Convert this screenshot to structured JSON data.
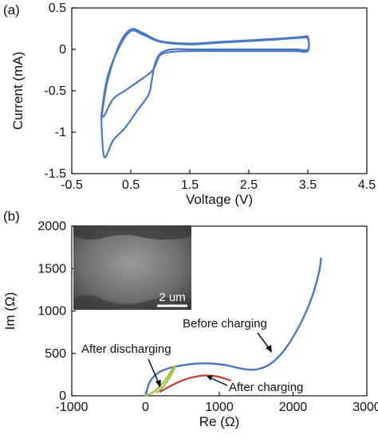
{
  "chart_data": [
    {
      "panel": "(a)",
      "type": "line",
      "xlabel": "Voltage (V)",
      "ylabel": "Current (mA)",
      "xlim": [
        -0.5,
        4.5
      ],
      "ylim": [
        -1.5,
        0.5
      ],
      "xticks": [
        "-0.5",
        "0.5",
        "1.5",
        "2.5",
        "3.5",
        "4.5"
      ],
      "yticks": [
        "-1.5",
        "-1",
        "-0.5",
        "0",
        "0.5"
      ],
      "color": "#4a78c0",
      "series": [
        {
          "x": [
            0.0,
            0.1,
            0.3,
            0.5,
            0.7,
            1.0,
            1.5,
            2.0,
            2.5,
            3.0,
            3.4,
            3.5,
            3.5,
            3.3,
            3.0,
            2.5,
            2.0,
            1.5,
            1.2,
            1.0,
            0.9,
            0.85,
            0.8,
            0.6,
            0.4,
            0.2,
            0.05,
            0.0
          ],
          "y": [
            -0.85,
            -0.4,
            0.05,
            0.24,
            0.2,
            0.1,
            0.07,
            0.09,
            0.11,
            0.13,
            0.15,
            0.15,
            0.0,
            0.0,
            0.0,
            0.0,
            0.0,
            0.0,
            0.0,
            -0.05,
            -0.2,
            -0.4,
            -0.55,
            -0.75,
            -0.95,
            -1.1,
            -1.3,
            -0.85
          ]
        },
        {
          "x": [
            0.0,
            0.1,
            0.3,
            0.5,
            0.7,
            1.0,
            1.5,
            2.0,
            2.5,
            3.0,
            3.4,
            3.5,
            3.5,
            3.3,
            3.0,
            2.5,
            2.0,
            1.5,
            1.2,
            1.0,
            0.9,
            0.8,
            0.6,
            0.4,
            0.2,
            0.05,
            0.0
          ],
          "y": [
            -0.8,
            -0.35,
            0.02,
            0.22,
            0.18,
            0.09,
            0.06,
            0.08,
            0.1,
            0.12,
            0.14,
            0.13,
            -0.02,
            -0.02,
            -0.02,
            -0.02,
            -0.02,
            -0.02,
            -0.03,
            -0.07,
            -0.22,
            -0.3,
            -0.4,
            -0.5,
            -0.6,
            -0.8,
            -0.8
          ]
        }
      ]
    },
    {
      "panel": "(b)",
      "type": "line",
      "xlabel": "Re (Ω)",
      "ylabel": "Im (Ω)",
      "xlim": [
        -1000,
        3000
      ],
      "ylim": [
        0,
        2000
      ],
      "xticks": [
        "-1000",
        "0",
        "1000",
        "2000",
        "3000"
      ],
      "yticks": [
        "0",
        "500",
        "1000",
        "1500",
        "2000"
      ],
      "inset_label": "2 um",
      "series": [
        {
          "name": "Before charging",
          "color": "#4a78c0",
          "x": [
            0,
            50,
            150,
            300,
            500,
            700,
            900,
            1100,
            1300,
            1500,
            1700,
            1900,
            2100,
            2250,
            2350,
            2380
          ],
          "y": [
            0,
            150,
            260,
            320,
            360,
            380,
            380,
            360,
            320,
            310,
            380,
            560,
            850,
            1150,
            1450,
            1620
          ]
        },
        {
          "name": "After discharging",
          "color": "#a8c050",
          "x": [
            0,
            100,
            200,
            280,
            340,
            380,
            400,
            380,
            300,
            220,
            150
          ],
          "y": [
            0,
            40,
            120,
            200,
            280,
            330,
            350,
            300,
            180,
            90,
            40
          ]
        },
        {
          "name": "After charging",
          "color": "#c04a40",
          "x": [
            200,
            350,
            500,
            650,
            800,
            950,
            1050,
            1150
          ],
          "y": [
            50,
            120,
            180,
            220,
            240,
            230,
            210,
            180
          ]
        }
      ],
      "annotations": [
        "Before charging",
        "After discharging",
        "After charging"
      ]
    }
  ]
}
